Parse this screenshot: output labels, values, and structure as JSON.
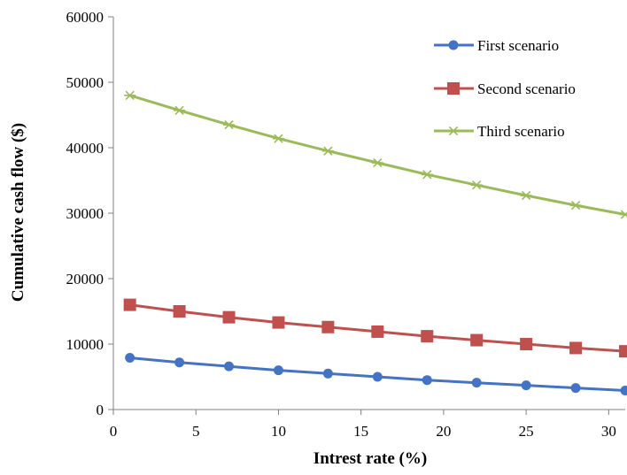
{
  "chart_data": {
    "type": "line",
    "title": "",
    "xlabel": "Intrest rate (%)",
    "ylabel": "Cumulative cash flow ($)",
    "xlim": [
      0,
      31
    ],
    "ylim": [
      0,
      60000
    ],
    "xticks": [
      0,
      5,
      10,
      15,
      20,
      25,
      30
    ],
    "yticks": [
      0,
      10000,
      20000,
      30000,
      40000,
      50000,
      60000
    ],
    "grid": false,
    "legend_position": "top-right",
    "x": [
      1,
      4,
      7,
      10,
      13,
      16,
      19,
      22,
      25,
      28,
      31
    ],
    "series": [
      {
        "name": "First scenario",
        "color": "#4472C4",
        "marker": "circle",
        "values": [
          7900,
          7200,
          6600,
          6000,
          5500,
          5000,
          4500,
          4100,
          3700,
          3300,
          2900
        ]
      },
      {
        "name": "Second scenario",
        "color": "#C0504D",
        "marker": "square",
        "values": [
          16000,
          15000,
          14100,
          13300,
          12600,
          11900,
          11200,
          10600,
          10000,
          9400,
          8900
        ]
      },
      {
        "name": "Third scenario",
        "color": "#9BBB59",
        "marker": "star",
        "values": [
          48000,
          45700,
          43500,
          41400,
          39500,
          37700,
          35900,
          34300,
          32700,
          31200,
          29800
        ]
      }
    ]
  }
}
